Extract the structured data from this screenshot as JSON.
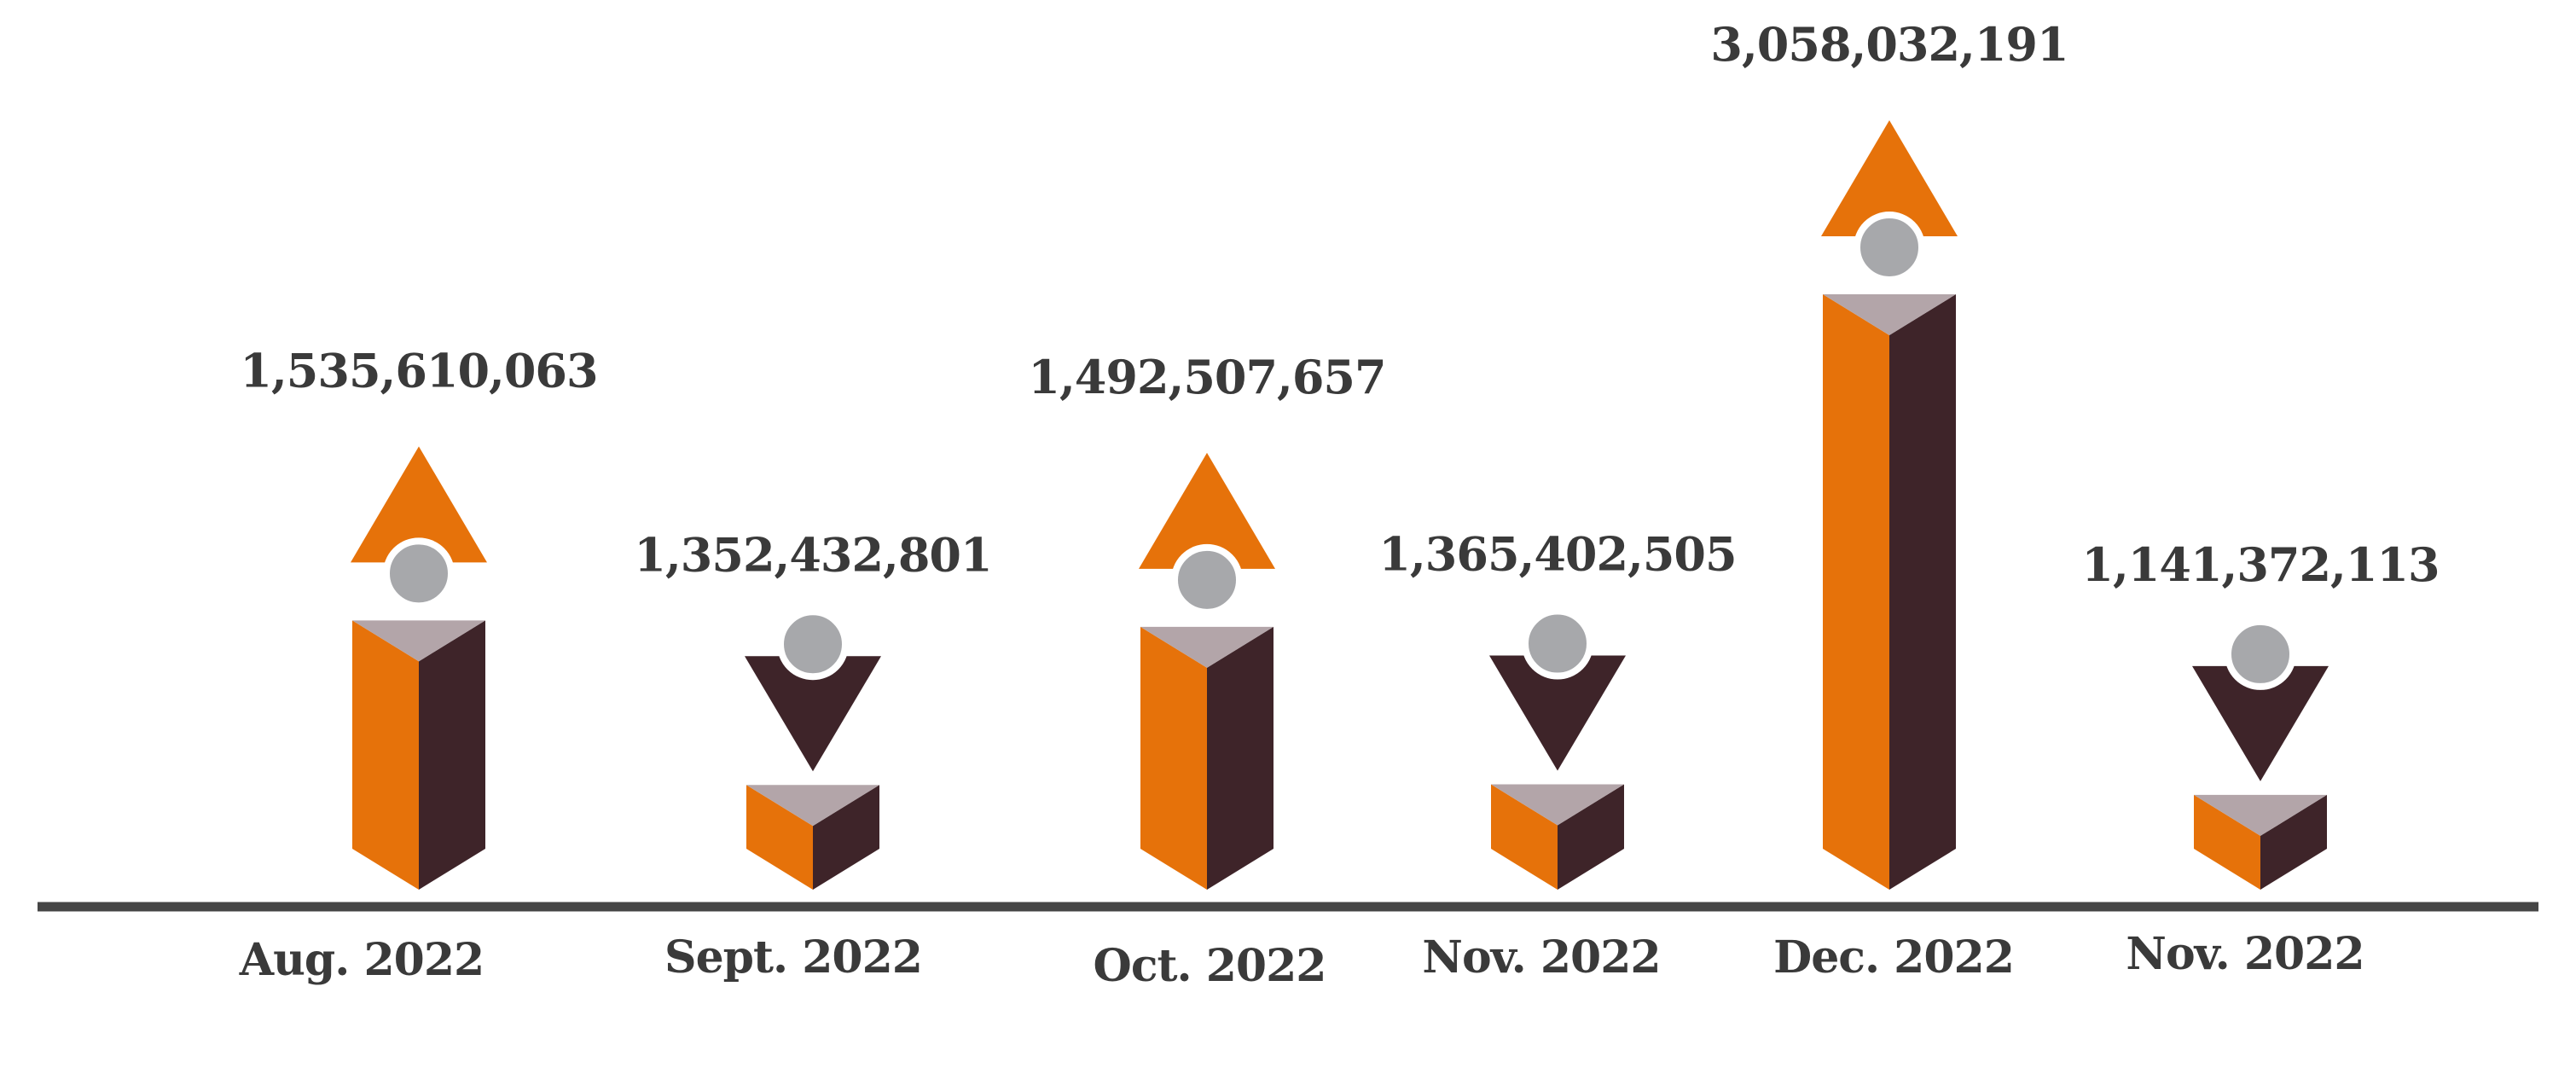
{
  "chart_data": {
    "type": "bar",
    "categories": [
      "Aug. 2022",
      "Sept. 2022",
      "Oct. 2022",
      "Nov. 2022",
      "Dec. 2022",
      "Nov. 2022"
    ],
    "values": [
      1535610063,
      1352432801,
      1492507657,
      1365402505,
      3058032191,
      1141372113
    ],
    "value_labels": [
      "1,535,610,063",
      "1,352,432,801",
      "1,492,507,657",
      "1,365,402,505",
      "3,058,032,191",
      "1,141,372,113"
    ],
    "trend": [
      "up",
      "down",
      "up",
      "down",
      "up",
      "down"
    ],
    "title": "",
    "xlabel": "",
    "ylabel": "",
    "grid": false,
    "legend": "none",
    "colors": {
      "bar_front": "#E6720A",
      "bar_side": "#3E2429",
      "bar_top": "#B3A5A9",
      "arrow_up": "#E6720A",
      "arrow_down": "#3E2429",
      "icon_circle": "#A7A8AB",
      "baseline": "#454545",
      "text": "#3A3A3A"
    }
  }
}
